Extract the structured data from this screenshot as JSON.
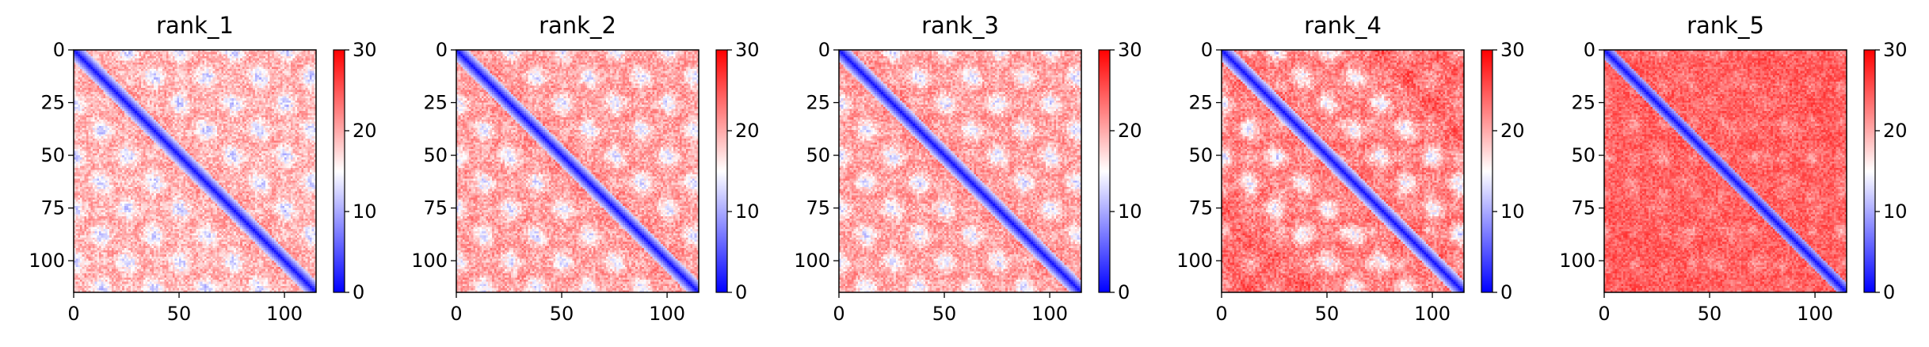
{
  "colors": {
    "low": "#0000ff",
    "mid": "#ffffff",
    "high": "#ff0000",
    "axis": "#000000"
  },
  "colorbar": {
    "range": [
      0,
      30
    ],
    "ticks": [
      "0",
      "10",
      "20",
      "30"
    ]
  },
  "chart_data": [
    {
      "type": "heatmap",
      "title": "rank_1",
      "colormap": "bwr",
      "size": 115,
      "xlim": [
        0,
        115
      ],
      "ylim": [
        115,
        0
      ],
      "xticks": [
        "0",
        "50",
        "100"
      ],
      "yticks": [
        "0",
        "25",
        "50",
        "75",
        "100"
      ],
      "clim": [
        0,
        30
      ],
      "diag_width": 6,
      "period": 25,
      "period2": 12.5,
      "stripe_offsets": [
        25,
        50,
        75,
        100
      ],
      "stripe_amp": 0.55,
      "base": 22,
      "noise": 3,
      "vertical_bands": false
    },
    {
      "type": "heatmap",
      "title": "rank_2",
      "colormap": "bwr",
      "size": 115,
      "xlim": [
        0,
        115
      ],
      "ylim": [
        115,
        0
      ],
      "xticks": [
        "0",
        "50",
        "100"
      ],
      "yticks": [
        "0",
        "25",
        "50",
        "75",
        "100"
      ],
      "clim": [
        0,
        30
      ],
      "diag_width": 6,
      "period": 25,
      "period2": 12.5,
      "stripe_offsets": [
        25,
        50,
        75,
        100
      ],
      "stripe_amp": 0.55,
      "base": 23,
      "noise": 3,
      "vertical_bands": false
    },
    {
      "type": "heatmap",
      "title": "rank_3",
      "colormap": "bwr",
      "size": 115,
      "xlim": [
        0,
        115
      ],
      "ylim": [
        115,
        0
      ],
      "xticks": [
        "0",
        "50",
        "100"
      ],
      "yticks": [
        "0",
        "25",
        "50",
        "75",
        "100"
      ],
      "clim": [
        0,
        30
      ],
      "diag_width": 6,
      "period": 25,
      "period2": 12.5,
      "stripe_offsets": [
        25,
        50,
        75,
        100
      ],
      "stripe_amp": 0.55,
      "base": 23,
      "noise": 3,
      "vertical_bands": false
    },
    {
      "type": "heatmap",
      "title": "rank_4",
      "colormap": "bwr",
      "size": 115,
      "xlim": [
        0,
        115
      ],
      "ylim": [
        115,
        0
      ],
      "xticks": [
        "0",
        "50",
        "100"
      ],
      "yticks": [
        "0",
        "25",
        "50",
        "75",
        "100"
      ],
      "clim": [
        0,
        30
      ],
      "diag_width": 6,
      "period": 25,
      "period2": 12.5,
      "stripe_offsets": [
        25,
        50
      ],
      "stripe_amp": 0.6,
      "base": 25,
      "noise": 3,
      "vertical_bands": true
    },
    {
      "type": "heatmap",
      "title": "rank_5",
      "colormap": "bwr",
      "size": 115,
      "xlim": [
        0,
        115
      ],
      "ylim": [
        115,
        0
      ],
      "xticks": [
        "0",
        "50",
        "100"
      ],
      "yticks": [
        "0",
        "25",
        "50",
        "75",
        "100"
      ],
      "clim": [
        0,
        30
      ],
      "diag_width": 5,
      "period": 25,
      "period2": 12.5,
      "stripe_offsets": [
        25,
        50
      ],
      "stripe_amp": 0.15,
      "base": 25,
      "noise": 2.5,
      "vertical_bands": true
    }
  ]
}
